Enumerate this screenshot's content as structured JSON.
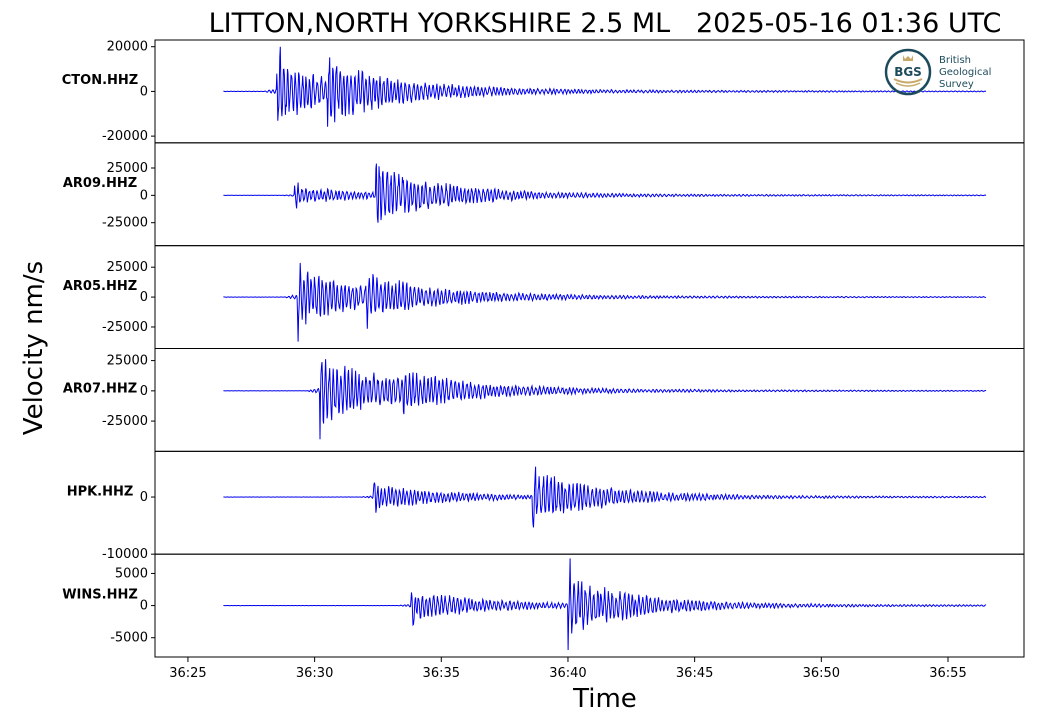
{
  "colors": {
    "trace": "#0000ee",
    "frame": "#000000",
    "logo": "#1d4b5c",
    "logo_accent": "#c8a96a"
  },
  "chart_data": {
    "type": "line",
    "title": "LITTON,NORTH YORKSHIRE 2.5 ML   2025-05-16 01:36 UTC",
    "xlabel": "Time",
    "ylabel": "Velocity nm/s",
    "x_ticks": [
      "36:25",
      "36:30",
      "36:35",
      "36:40",
      "36:45",
      "36:50",
      "36:55"
    ],
    "xlim_seconds": [
      -1.3,
      33.0
    ],
    "trace_span_seconds": [
      1.4,
      31.5
    ],
    "grid": false,
    "legend": "none",
    "logo": {
      "abbr": "BGS",
      "lines": [
        "British",
        "Geological",
        "Survey"
      ]
    },
    "series": [
      {
        "name": "CTON.HHZ",
        "ylim": [
          -23000,
          23000
        ],
        "y_ticks": [
          "20000",
          "0",
          "-20000"
        ],
        "y_tick_values": [
          20000,
          0,
          -20000
        ],
        "pre_noise": 200,
        "events": [
          {
            "t": 3.5,
            "amp": 22000,
            "tail": 30000
          },
          {
            "t": 5.5,
            "amp": 14000,
            "tail": 10000
          }
        ]
      },
      {
        "name": "AR09.HHZ",
        "ylim": [
          -46000,
          48000
        ],
        "y_ticks": [
          "25000",
          "0",
          "-25000"
        ],
        "y_tick_values": [
          25000,
          0,
          -25000
        ],
        "pre_noise": 300,
        "events": [
          {
            "t": 4.2,
            "amp": 14000,
            "tail": 26000
          },
          {
            "t": 7.4,
            "amp": 45000,
            "tail": 14000
          }
        ]
      },
      {
        "name": "AR05.HHZ",
        "ylim": [
          -43000,
          43000
        ],
        "y_ticks": [
          "25000",
          "0",
          "-25000"
        ],
        "y_tick_values": [
          25000,
          0,
          -25000
        ],
        "pre_noise": 300,
        "events": [
          {
            "t": 4.3,
            "amp": 41000,
            "tail": 28000
          },
          {
            "t": 7.0,
            "amp": 18000,
            "tail": 12000
          }
        ]
      },
      {
        "name": "AR07.HHZ",
        "ylim": [
          -50000,
          35000
        ],
        "y_ticks": [
          "25000",
          "0",
          "-25000"
        ],
        "y_tick_values": [
          25000,
          0,
          -25000
        ],
        "pre_noise": 300,
        "events": [
          {
            "t": 5.2,
            "amp": 48000,
            "tail": 30000
          },
          {
            "t": 8.5,
            "amp": 14000,
            "tail": 10000
          }
        ]
      },
      {
        "name": "HPK.HHZ",
        "ylim": [
          -10000,
          8000
        ],
        "y_ticks": [
          "0",
          "-10000"
        ],
        "y_tick_values": [
          0,
          -10000
        ],
        "pre_noise": 60,
        "events": [
          {
            "t": 7.3,
            "amp": 4000,
            "tail": 28000
          },
          {
            "t": 13.6,
            "amp": 7800,
            "tail": 12000
          }
        ]
      },
      {
        "name": "WINS.HHZ",
        "ylim": [
          -8000,
          8000
        ],
        "y_ticks": [
          "5000",
          "0",
          "-5000"
        ],
        "y_tick_values": [
          5000,
          0,
          -5000
        ],
        "pre_noise": 40,
        "events": [
          {
            "t": 8.8,
            "amp": 4200,
            "tail": 30000
          },
          {
            "t": 15.0,
            "amp": 7500,
            "tail": 12000
          }
        ]
      }
    ]
  }
}
